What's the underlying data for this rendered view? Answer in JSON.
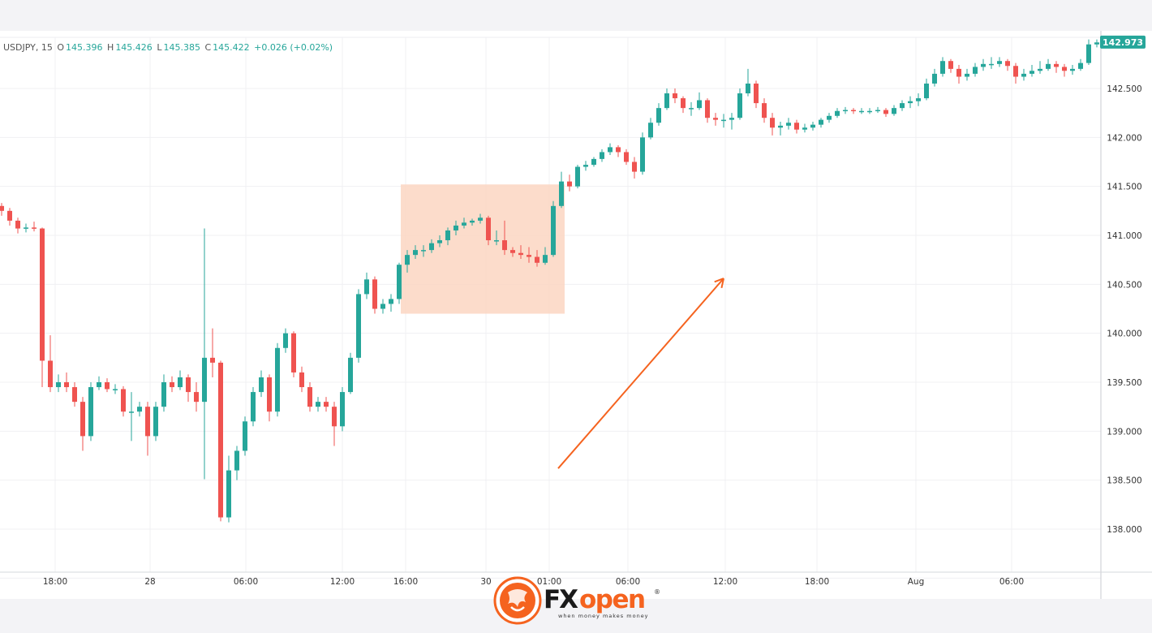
{
  "header": {
    "symbol": "USDJPY, 15",
    "o_label": "O",
    "o_value": "145.396",
    "h_label": "H",
    "h_value": "145.426",
    "l_label": "L",
    "l_value": "145.385",
    "c_label": "C",
    "c_value": "145.422",
    "change": "+0.026 (+0.02%)"
  },
  "brand": {
    "name": "FXopen",
    "tagline": "when money makes money"
  },
  "colors": {
    "up": "#26a69a",
    "down": "#ef5350",
    "highlight": "#fbd6c2",
    "arrow": "#f5631f",
    "grid": "#f0f0f3"
  },
  "chart_data": {
    "type": "candlestick",
    "title": "",
    "grid": true,
    "ylim": [
      137.6,
      143.05
    ],
    "y_ticks": [
      "138.000",
      "138.500",
      "139.000",
      "139.500",
      "140.000",
      "140.500",
      "141.000",
      "141.500",
      "142.000",
      "142.500"
    ],
    "y_tick_values": [
      138.0,
      138.5,
      139.0,
      139.5,
      140.0,
      140.5,
      141.0,
      141.5,
      142.0,
      142.5
    ],
    "last_price": "142.973",
    "x_ticks": [
      {
        "label": "18:00",
        "index": 6.6
      },
      {
        "label": "28",
        "index": 18.3
      },
      {
        "label": "06:00",
        "index": 30.1
      },
      {
        "label": "12:00",
        "index": 42
      },
      {
        "label": "16:00",
        "index": 49.8
      },
      {
        "label": "30",
        "index": 59.7
      },
      {
        "label": "01:00",
        "index": 67.5
      },
      {
        "label": "06:00",
        "index": 77.2
      },
      {
        "label": "12:00",
        "index": 89.2
      },
      {
        "label": "18:00",
        "index": 100.5
      },
      {
        "label": "Aug",
        "index": 112.7
      },
      {
        "label": "06:00",
        "index": 124.5
      }
    ],
    "highlight_box": {
      "index_from": 49.2,
      "index_to": 69.4,
      "price_from": 140.2,
      "price_to": 141.52
    },
    "trend_arrow": {
      "from": {
        "index": 68.6,
        "price": 138.62
      },
      "to": {
        "index": 89,
        "price": 140.56
      }
    },
    "ohlc": [
      [
        141.3,
        141.33,
        141.2,
        141.25
      ],
      [
        141.25,
        141.28,
        141.1,
        141.15
      ],
      [
        141.15,
        141.18,
        141.02,
        141.07
      ],
      [
        141.07,
        141.12,
        141.03,
        141.08
      ],
      [
        141.08,
        141.14,
        141.04,
        141.07
      ],
      [
        141.07,
        141.08,
        139.45,
        139.72
      ],
      [
        139.72,
        139.98,
        139.4,
        139.45
      ],
      [
        139.45,
        139.58,
        139.4,
        139.5
      ],
      [
        139.5,
        139.6,
        139.4,
        139.45
      ],
      [
        139.45,
        139.5,
        139.25,
        139.3
      ],
      [
        139.3,
        139.35,
        138.8,
        138.95
      ],
      [
        138.95,
        139.5,
        138.9,
        139.45
      ],
      [
        139.45,
        139.56,
        139.42,
        139.5
      ],
      [
        139.5,
        139.54,
        139.4,
        139.43
      ],
      [
        139.43,
        139.48,
        139.38,
        139.43
      ],
      [
        139.43,
        139.46,
        139.15,
        139.2
      ],
      [
        139.2,
        139.4,
        138.9,
        139.2
      ],
      [
        139.2,
        139.3,
        139.15,
        139.25
      ],
      [
        139.25,
        139.3,
        138.75,
        138.95
      ],
      [
        138.95,
        139.3,
        138.9,
        139.25
      ],
      [
        139.25,
        139.58,
        139.2,
        139.5
      ],
      [
        139.5,
        139.56,
        139.4,
        139.45
      ],
      [
        139.45,
        139.62,
        139.42,
        139.55
      ],
      [
        139.55,
        139.58,
        139.3,
        139.4
      ],
      [
        139.4,
        139.5,
        139.2,
        139.3
      ],
      [
        139.3,
        141.07,
        138.51,
        139.75
      ],
      [
        139.75,
        140.05,
        139.55,
        139.7
      ],
      [
        139.7,
        139.72,
        138.08,
        138.12
      ],
      [
        138.12,
        138.75,
        138.07,
        138.6
      ],
      [
        138.6,
        138.85,
        138.5,
        138.8
      ],
      [
        138.8,
        139.15,
        138.75,
        139.1
      ],
      [
        139.1,
        139.45,
        139.05,
        139.4
      ],
      [
        139.4,
        139.62,
        139.35,
        139.55
      ],
      [
        139.55,
        139.58,
        139.1,
        139.2
      ],
      [
        139.2,
        139.9,
        139.15,
        139.85
      ],
      [
        139.85,
        140.05,
        139.8,
        140.0
      ],
      [
        140.0,
        140.02,
        139.55,
        139.6
      ],
      [
        139.6,
        139.66,
        139.4,
        139.45
      ],
      [
        139.45,
        139.5,
        139.2,
        139.25
      ],
      [
        139.25,
        139.35,
        139.2,
        139.3
      ],
      [
        139.3,
        139.35,
        139.2,
        139.25
      ],
      [
        139.25,
        139.3,
        138.85,
        139.05
      ],
      [
        139.05,
        139.45,
        139.0,
        139.4
      ],
      [
        139.4,
        139.8,
        139.38,
        139.75
      ],
      [
        139.75,
        140.45,
        139.7,
        140.4
      ],
      [
        140.4,
        140.62,
        140.35,
        140.55
      ],
      [
        140.55,
        140.58,
        140.2,
        140.25
      ],
      [
        140.25,
        140.35,
        140.2,
        140.3
      ],
      [
        140.3,
        140.4,
        140.22,
        140.35
      ],
      [
        140.35,
        140.72,
        140.3,
        140.7
      ],
      [
        140.7,
        140.85,
        140.62,
        140.8
      ],
      [
        140.8,
        140.9,
        140.76,
        140.85
      ],
      [
        140.85,
        140.9,
        140.78,
        140.85
      ],
      [
        140.85,
        140.96,
        140.82,
        140.92
      ],
      [
        140.92,
        141.0,
        140.88,
        140.95
      ],
      [
        140.95,
        141.08,
        140.9,
        141.05
      ],
      [
        141.05,
        141.15,
        141.0,
        141.1
      ],
      [
        141.1,
        141.18,
        141.07,
        141.13
      ],
      [
        141.13,
        141.17,
        141.1,
        141.15
      ],
      [
        141.15,
        141.22,
        141.12,
        141.18
      ],
      [
        141.18,
        141.2,
        140.9,
        140.95
      ],
      [
        140.95,
        141.05,
        140.9,
        140.95
      ],
      [
        140.95,
        141.15,
        140.8,
        140.85
      ],
      [
        140.85,
        140.88,
        140.78,
        140.82
      ],
      [
        140.82,
        140.9,
        140.76,
        140.8
      ],
      [
        140.8,
        140.88,
        140.72,
        140.78
      ],
      [
        140.78,
        140.85,
        140.68,
        140.72
      ],
      [
        140.72,
        140.88,
        140.7,
        140.8
      ],
      [
        140.8,
        141.35,
        140.78,
        141.3
      ],
      [
        141.3,
        141.65,
        141.28,
        141.55
      ],
      [
        141.55,
        141.62,
        141.45,
        141.5
      ],
      [
        141.5,
        141.72,
        141.48,
        141.7
      ],
      [
        141.7,
        141.76,
        141.66,
        141.72
      ],
      [
        141.72,
        141.8,
        141.7,
        141.78
      ],
      [
        141.78,
        141.88,
        141.75,
        141.85
      ],
      [
        141.85,
        141.94,
        141.82,
        141.9
      ],
      [
        141.9,
        141.92,
        141.8,
        141.85
      ],
      [
        141.85,
        141.88,
        141.72,
        141.75
      ],
      [
        141.75,
        141.8,
        141.58,
        141.65
      ],
      [
        141.65,
        142.05,
        141.62,
        142.0
      ],
      [
        142.0,
        142.2,
        141.98,
        142.15
      ],
      [
        142.15,
        142.35,
        142.12,
        142.3
      ],
      [
        142.3,
        142.5,
        142.28,
        142.45
      ],
      [
        142.45,
        142.5,
        142.35,
        142.4
      ],
      [
        142.4,
        142.42,
        142.25,
        142.3
      ],
      [
        142.3,
        142.36,
        142.22,
        142.3
      ],
      [
        142.3,
        142.46,
        142.28,
        142.38
      ],
      [
        142.38,
        142.4,
        142.15,
        142.2
      ],
      [
        142.2,
        142.25,
        142.12,
        142.18
      ],
      [
        142.18,
        142.24,
        142.1,
        142.18
      ],
      [
        142.18,
        142.25,
        142.08,
        142.2
      ],
      [
        142.2,
        142.5,
        142.18,
        142.45
      ],
      [
        142.45,
        142.7,
        142.42,
        142.55
      ],
      [
        142.55,
        142.58,
        142.3,
        142.35
      ],
      [
        142.35,
        142.4,
        142.15,
        142.2
      ],
      [
        142.2,
        142.25,
        142.02,
        142.1
      ],
      [
        142.1,
        142.16,
        142.02,
        142.12
      ],
      [
        142.12,
        142.2,
        142.08,
        142.15
      ],
      [
        142.15,
        142.18,
        142.04,
        142.08
      ],
      [
        142.08,
        142.14,
        142.05,
        142.1
      ],
      [
        142.1,
        142.16,
        142.07,
        142.13
      ],
      [
        142.13,
        142.2,
        142.1,
        142.18
      ],
      [
        142.18,
        142.25,
        142.15,
        142.22
      ],
      [
        142.22,
        142.3,
        142.2,
        142.27
      ],
      [
        142.27,
        142.31,
        142.24,
        142.28
      ],
      [
        142.28,
        142.3,
        142.24,
        142.27
      ],
      [
        142.27,
        142.3,
        142.24,
        142.27
      ],
      [
        142.27,
        142.3,
        142.24,
        142.27
      ],
      [
        142.27,
        142.31,
        142.25,
        142.28
      ],
      [
        142.28,
        142.3,
        142.21,
        142.24
      ],
      [
        142.24,
        142.33,
        142.22,
        142.3
      ],
      [
        142.3,
        142.38,
        142.27,
        142.35
      ],
      [
        142.35,
        142.42,
        142.3,
        142.37
      ],
      [
        142.37,
        142.45,
        142.32,
        142.4
      ],
      [
        142.4,
        142.6,
        142.38,
        142.55
      ],
      [
        142.55,
        142.7,
        142.52,
        142.65
      ],
      [
        142.65,
        142.82,
        142.62,
        142.78
      ],
      [
        142.78,
        142.8,
        142.66,
        142.7
      ],
      [
        142.7,
        142.74,
        142.55,
        142.62
      ],
      [
        142.62,
        142.7,
        142.58,
        142.65
      ],
      [
        142.65,
        142.76,
        142.62,
        142.72
      ],
      [
        142.72,
        142.8,
        142.68,
        142.75
      ],
      [
        142.75,
        142.82,
        142.7,
        142.75
      ],
      [
        142.75,
        142.82,
        142.72,
        142.78
      ],
      [
        142.78,
        142.8,
        142.68,
        142.73
      ],
      [
        142.73,
        142.76,
        142.55,
        142.62
      ],
      [
        142.62,
        142.7,
        142.58,
        142.65
      ],
      [
        142.65,
        142.74,
        142.62,
        142.68
      ],
      [
        142.68,
        142.78,
        142.65,
        142.7
      ],
      [
        142.7,
        142.8,
        142.68,
        142.75
      ],
      [
        142.75,
        142.78,
        142.66,
        142.72
      ],
      [
        142.72,
        142.75,
        142.62,
        142.68
      ],
      [
        142.68,
        142.74,
        142.64,
        142.7
      ],
      [
        142.7,
        142.8,
        142.68,
        142.76
      ],
      [
        142.76,
        143.0,
        142.74,
        142.95
      ],
      [
        142.95,
        143.0,
        142.92,
        142.97
      ]
    ]
  }
}
